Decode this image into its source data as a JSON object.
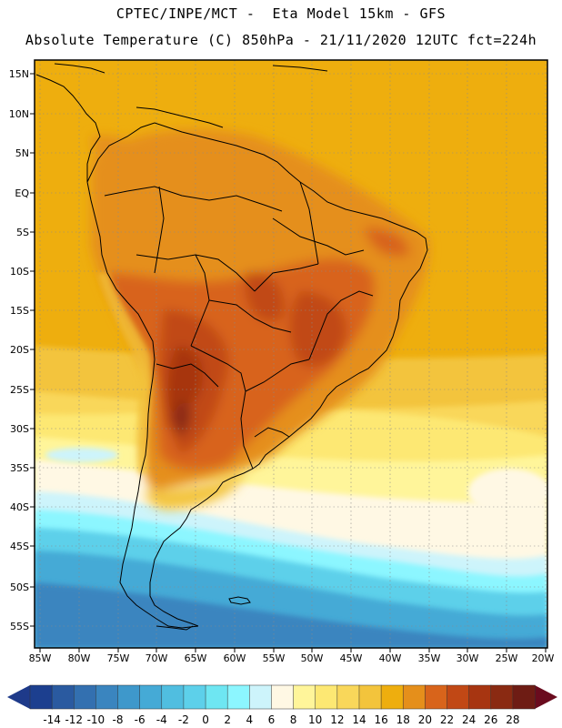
{
  "header": {
    "line1": "CPTEC/INPE/MCT -  Eta Model 15km - GFS",
    "line2": "Absolute Temperature (C) 850hPa - 21/11/2020 12UTC fct=224h"
  },
  "axes": {
    "lat_labels": [
      "15N",
      "10N",
      "5N",
      "EQ",
      "5S",
      "10S",
      "15S",
      "20S",
      "25S",
      "30S",
      "35S",
      "40S",
      "45S",
      "50S",
      "55S"
    ],
    "lon_labels": [
      "85W",
      "80W",
      "75W",
      "70W",
      "65W",
      "60W",
      "55W",
      "50W",
      "45W",
      "40W",
      "35W",
      "30W",
      "25W",
      "20W"
    ]
  },
  "colorbar": {
    "ticks": [
      "-14",
      "-12",
      "-10",
      "-8",
      "-6",
      "-4",
      "-2",
      "0",
      "2",
      "4",
      "6",
      "8",
      "10",
      "12",
      "14",
      "16",
      "18",
      "20",
      "22",
      "24",
      "26",
      "28"
    ],
    "colors": [
      "#1c3f8f",
      "#2a5aa0",
      "#3370b0",
      "#3a85bf",
      "#3e98cb",
      "#45aad6",
      "#50bee0",
      "#5dd0ea",
      "#6ee6f2",
      "#8cf6ff",
      "#cdf4fb",
      "#fff8e4",
      "#fff59a",
      "#fde873",
      "#f9d75a",
      "#f3c43c",
      "#eeae0e",
      "#e58f1b",
      "#d8641b",
      "#c14815",
      "#a73511",
      "#8a2a12",
      "#6e1c14"
    ],
    "under_color": "#1e3a8a",
    "over_color": "#6a0b1e"
  }
}
